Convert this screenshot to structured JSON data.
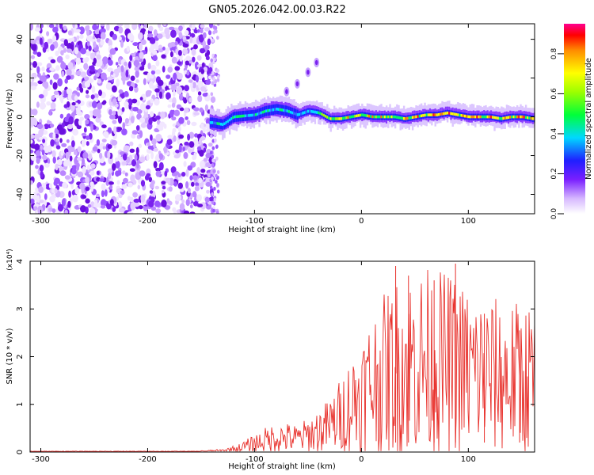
{
  "title": "GN05.2026.042.00.03.R22",
  "chart_data": [
    {
      "type": "heatmap",
      "name": "spectrogram",
      "xlabel": "Height of straight line (km)",
      "ylabel": "Frequency (Hz)",
      "xlim": [
        -310,
        162
      ],
      "ylim": [
        -50,
        48
      ],
      "x_ticks": [
        -300,
        -200,
        -100,
        0,
        100
      ],
      "y_ticks": [
        -40,
        -20,
        0,
        20,
        40
      ],
      "noise_region": {
        "x": [
          -310,
          -138
        ],
        "y": [
          -50,
          48
        ]
      },
      "signal_band": {
        "x": [
          -142,
          162
        ],
        "center_freq": [
          [
            -140,
            -3
          ],
          [
            -130,
            -4
          ],
          [
            -120,
            0
          ],
          [
            -100,
            1
          ],
          [
            -90,
            3
          ],
          [
            -80,
            4
          ],
          [
            -70,
            3
          ],
          [
            -60,
            1
          ],
          [
            -50,
            3
          ],
          [
            -40,
            2
          ],
          [
            -30,
            -1
          ],
          [
            -20,
            -1
          ],
          [
            -10,
            0
          ],
          [
            0,
            1
          ],
          [
            10,
            0
          ],
          [
            20,
            0
          ],
          [
            30,
            0
          ],
          [
            40,
            -1
          ],
          [
            50,
            0
          ],
          [
            60,
            1
          ],
          [
            70,
            1
          ],
          [
            80,
            2
          ],
          [
            90,
            1
          ],
          [
            100,
            0
          ],
          [
            110,
            0
          ],
          [
            120,
            0
          ],
          [
            130,
            -1
          ],
          [
            140,
            0
          ],
          [
            150,
            0
          ],
          [
            160,
            -1
          ]
        ]
      },
      "side_feature": [
        [
          -70,
          13
        ],
        [
          -60,
          17
        ],
        [
          -50,
          23
        ],
        [
          -42,
          28
        ]
      ],
      "colorbar": {
        "label": "Normalized spectral amplitude",
        "range": [
          0,
          0.95
        ],
        "ticks": [
          0.0,
          0.2,
          0.4,
          0.6,
          0.8
        ]
      }
    },
    {
      "type": "line",
      "name": "snr",
      "xlabel": "Height of straight line (km)",
      "ylabel": "SNR (10 * v/v)",
      "multiplier_label": "(x10⁴)",
      "xlim": [
        -310,
        162
      ],
      "ylim": [
        0,
        4
      ],
      "x_ticks": [
        -300,
        -200,
        -100,
        0,
        100
      ],
      "y_ticks": [
        0,
        1,
        2,
        3,
        4
      ],
      "color": "#e8302b",
      "envelope_mean": [
        [
          -310,
          0.01
        ],
        [
          -160,
          0.01
        ],
        [
          -130,
          0.03
        ],
        [
          -115,
          0.08
        ],
        [
          -100,
          0.18
        ],
        [
          -90,
          0.25
        ],
        [
          -80,
          0.3
        ],
        [
          -70,
          0.3
        ],
        [
          -60,
          0.28
        ],
        [
          -50,
          0.35
        ],
        [
          -40,
          0.45
        ],
        [
          -30,
          0.55
        ],
        [
          -20,
          0.75
        ],
        [
          -10,
          1.0
        ],
        [
          0,
          1.2
        ],
        [
          10,
          1.45
        ],
        [
          20,
          1.6
        ],
        [
          30,
          1.75
        ],
        [
          40,
          1.85
        ],
        [
          60,
          1.9
        ],
        [
          80,
          1.85
        ],
        [
          100,
          1.7
        ],
        [
          120,
          1.6
        ],
        [
          140,
          1.55
        ],
        [
          162,
          1.55
        ]
      ],
      "peaks": [
        [
          32,
          3.9
        ],
        [
          44,
          3.7
        ],
        [
          68,
          3.6
        ],
        [
          88,
          3.95
        ],
        [
          115,
          2.9
        ],
        [
          148,
          2.55
        ]
      ]
    }
  ]
}
